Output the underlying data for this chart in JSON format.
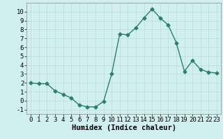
{
  "x": [
    0,
    1,
    2,
    3,
    4,
    5,
    6,
    7,
    8,
    9,
    10,
    11,
    12,
    13,
    14,
    15,
    16,
    17,
    18,
    19,
    20,
    21,
    22,
    23
  ],
  "y": [
    2.0,
    1.9,
    1.9,
    1.1,
    0.7,
    0.3,
    -0.5,
    -0.7,
    -0.7,
    -0.1,
    3.0,
    7.5,
    7.4,
    8.2,
    9.3,
    10.3,
    9.3,
    8.5,
    6.5,
    3.3,
    4.5,
    3.5,
    3.2,
    3.1
  ],
  "line_color": "#2e7d6e",
  "marker": "D",
  "marker_size": 2.5,
  "bg_color": "#cff0ee",
  "grid_color": "#c0d8d8",
  "xlabel": "Humidex (Indice chaleur)",
  "ylim": [
    -1.5,
    11
  ],
  "xlim": [
    -0.5,
    23.5
  ],
  "yticks": [
    -1,
    0,
    1,
    2,
    3,
    4,
    5,
    6,
    7,
    8,
    9,
    10
  ],
  "xticks": [
    0,
    1,
    2,
    3,
    4,
    5,
    6,
    7,
    8,
    9,
    10,
    11,
    12,
    13,
    14,
    15,
    16,
    17,
    18,
    19,
    20,
    21,
    22,
    23
  ],
  "xlabel_fontsize": 7.5,
  "tick_fontsize": 6.5,
  "line_width": 1.0
}
